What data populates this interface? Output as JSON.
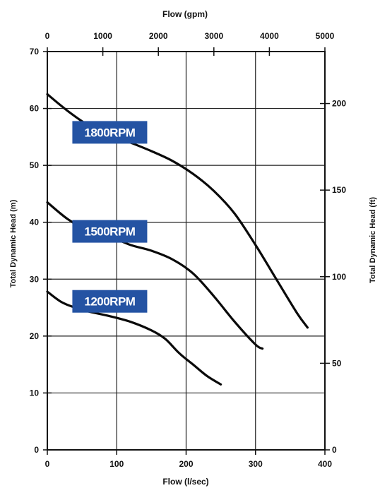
{
  "chart_data": {
    "type": "line",
    "title": "",
    "xlabel": "Flow (l/sec)",
    "x2label": "Flow (gpm)",
    "ylabel": "Total Dynamic Head (m)",
    "y2label": "Total Dynamic Head (ft)",
    "xlim": [
      0,
      400
    ],
    "ylim": [
      0,
      70
    ],
    "x2lim": [
      0,
      5000
    ],
    "y2lim": [
      0,
      230
    ],
    "xticks": [
      "0",
      "100",
      "200",
      "300",
      "400"
    ],
    "yticks": [
      "0",
      "10",
      "20",
      "30",
      "40",
      "50",
      "60",
      "70"
    ],
    "x2ticks": [
      "0",
      "1000",
      "2000",
      "3000",
      "4000",
      "5000"
    ],
    "y2ticks": [
      "0",
      "50",
      "100",
      "150",
      "200"
    ],
    "grid": true,
    "label_color": "#2453a3",
    "series": [
      {
        "name": "1800RPM",
        "x": [
          0,
          30,
          60,
          90,
          120,
          150,
          180,
          210,
          240,
          270,
          300,
          330,
          360,
          375
        ],
        "y": [
          62.5,
          59.5,
          57.0,
          55.5,
          54.0,
          52.5,
          50.8,
          48.5,
          45.5,
          41.5,
          36.0,
          30.0,
          24.0,
          21.5
        ],
        "label_at": [
          90,
          55.8
        ]
      },
      {
        "name": "1500RPM",
        "x": [
          0,
          30,
          60,
          90,
          120,
          150,
          180,
          210,
          240,
          270,
          300,
          310
        ],
        "y": [
          43.5,
          40.5,
          38.5,
          37.5,
          36.0,
          35.0,
          33.5,
          31.0,
          27.0,
          22.5,
          18.5,
          17.8
        ],
        "label_at": [
          90,
          38.4
        ]
      },
      {
        "name": "1200RPM",
        "x": [
          0,
          20,
          40,
          60,
          90,
          120,
          150,
          170,
          190,
          210,
          230,
          250
        ],
        "y": [
          27.8,
          26.0,
          25.0,
          24.3,
          23.5,
          22.5,
          21.0,
          19.5,
          17.0,
          15.0,
          13.0,
          11.5
        ],
        "label_at": [
          90,
          26.1
        ]
      }
    ]
  }
}
